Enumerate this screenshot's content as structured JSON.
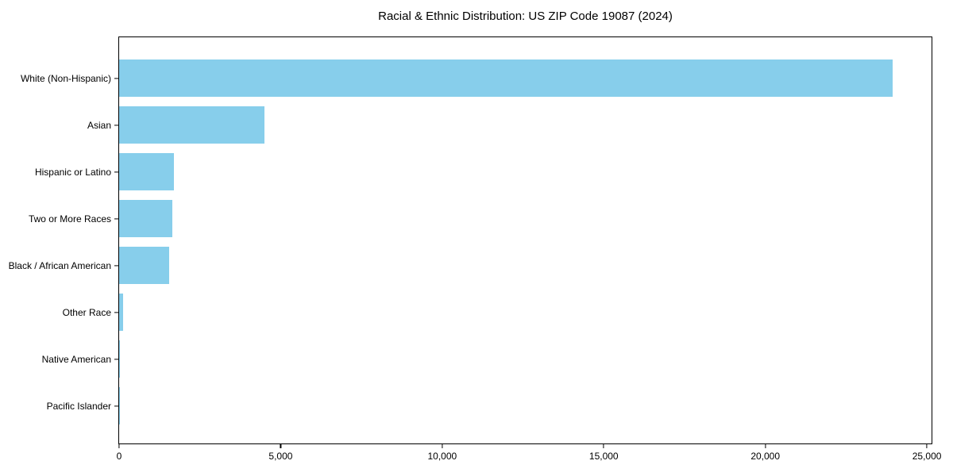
{
  "chart_data": {
    "type": "bar",
    "orientation": "horizontal",
    "title": "Racial & Ethnic Distribution: US ZIP Code 19087 (2024)",
    "categories": [
      "White (Non-Hispanic)",
      "Asian",
      "Hispanic or Latino",
      "Two or More Races",
      "Black / African American",
      "Other Race",
      "Native American",
      "Pacific Islander"
    ],
    "values": [
      23950,
      4500,
      1700,
      1650,
      1550,
      120,
      20,
      10
    ],
    "xlabel": "",
    "ylabel": "",
    "xlim": [
      0,
      25145
    ],
    "xticks": [
      0,
      5000,
      10000,
      15000,
      20000,
      25000
    ],
    "xtick_labels": [
      "0",
      "5,000",
      "10,000",
      "15,000",
      "20,000",
      "25,000"
    ],
    "bar_color": "#87CEEB",
    "axis_color": "#000000",
    "background_color": "#ffffff",
    "grid": false,
    "legend": "none"
  }
}
